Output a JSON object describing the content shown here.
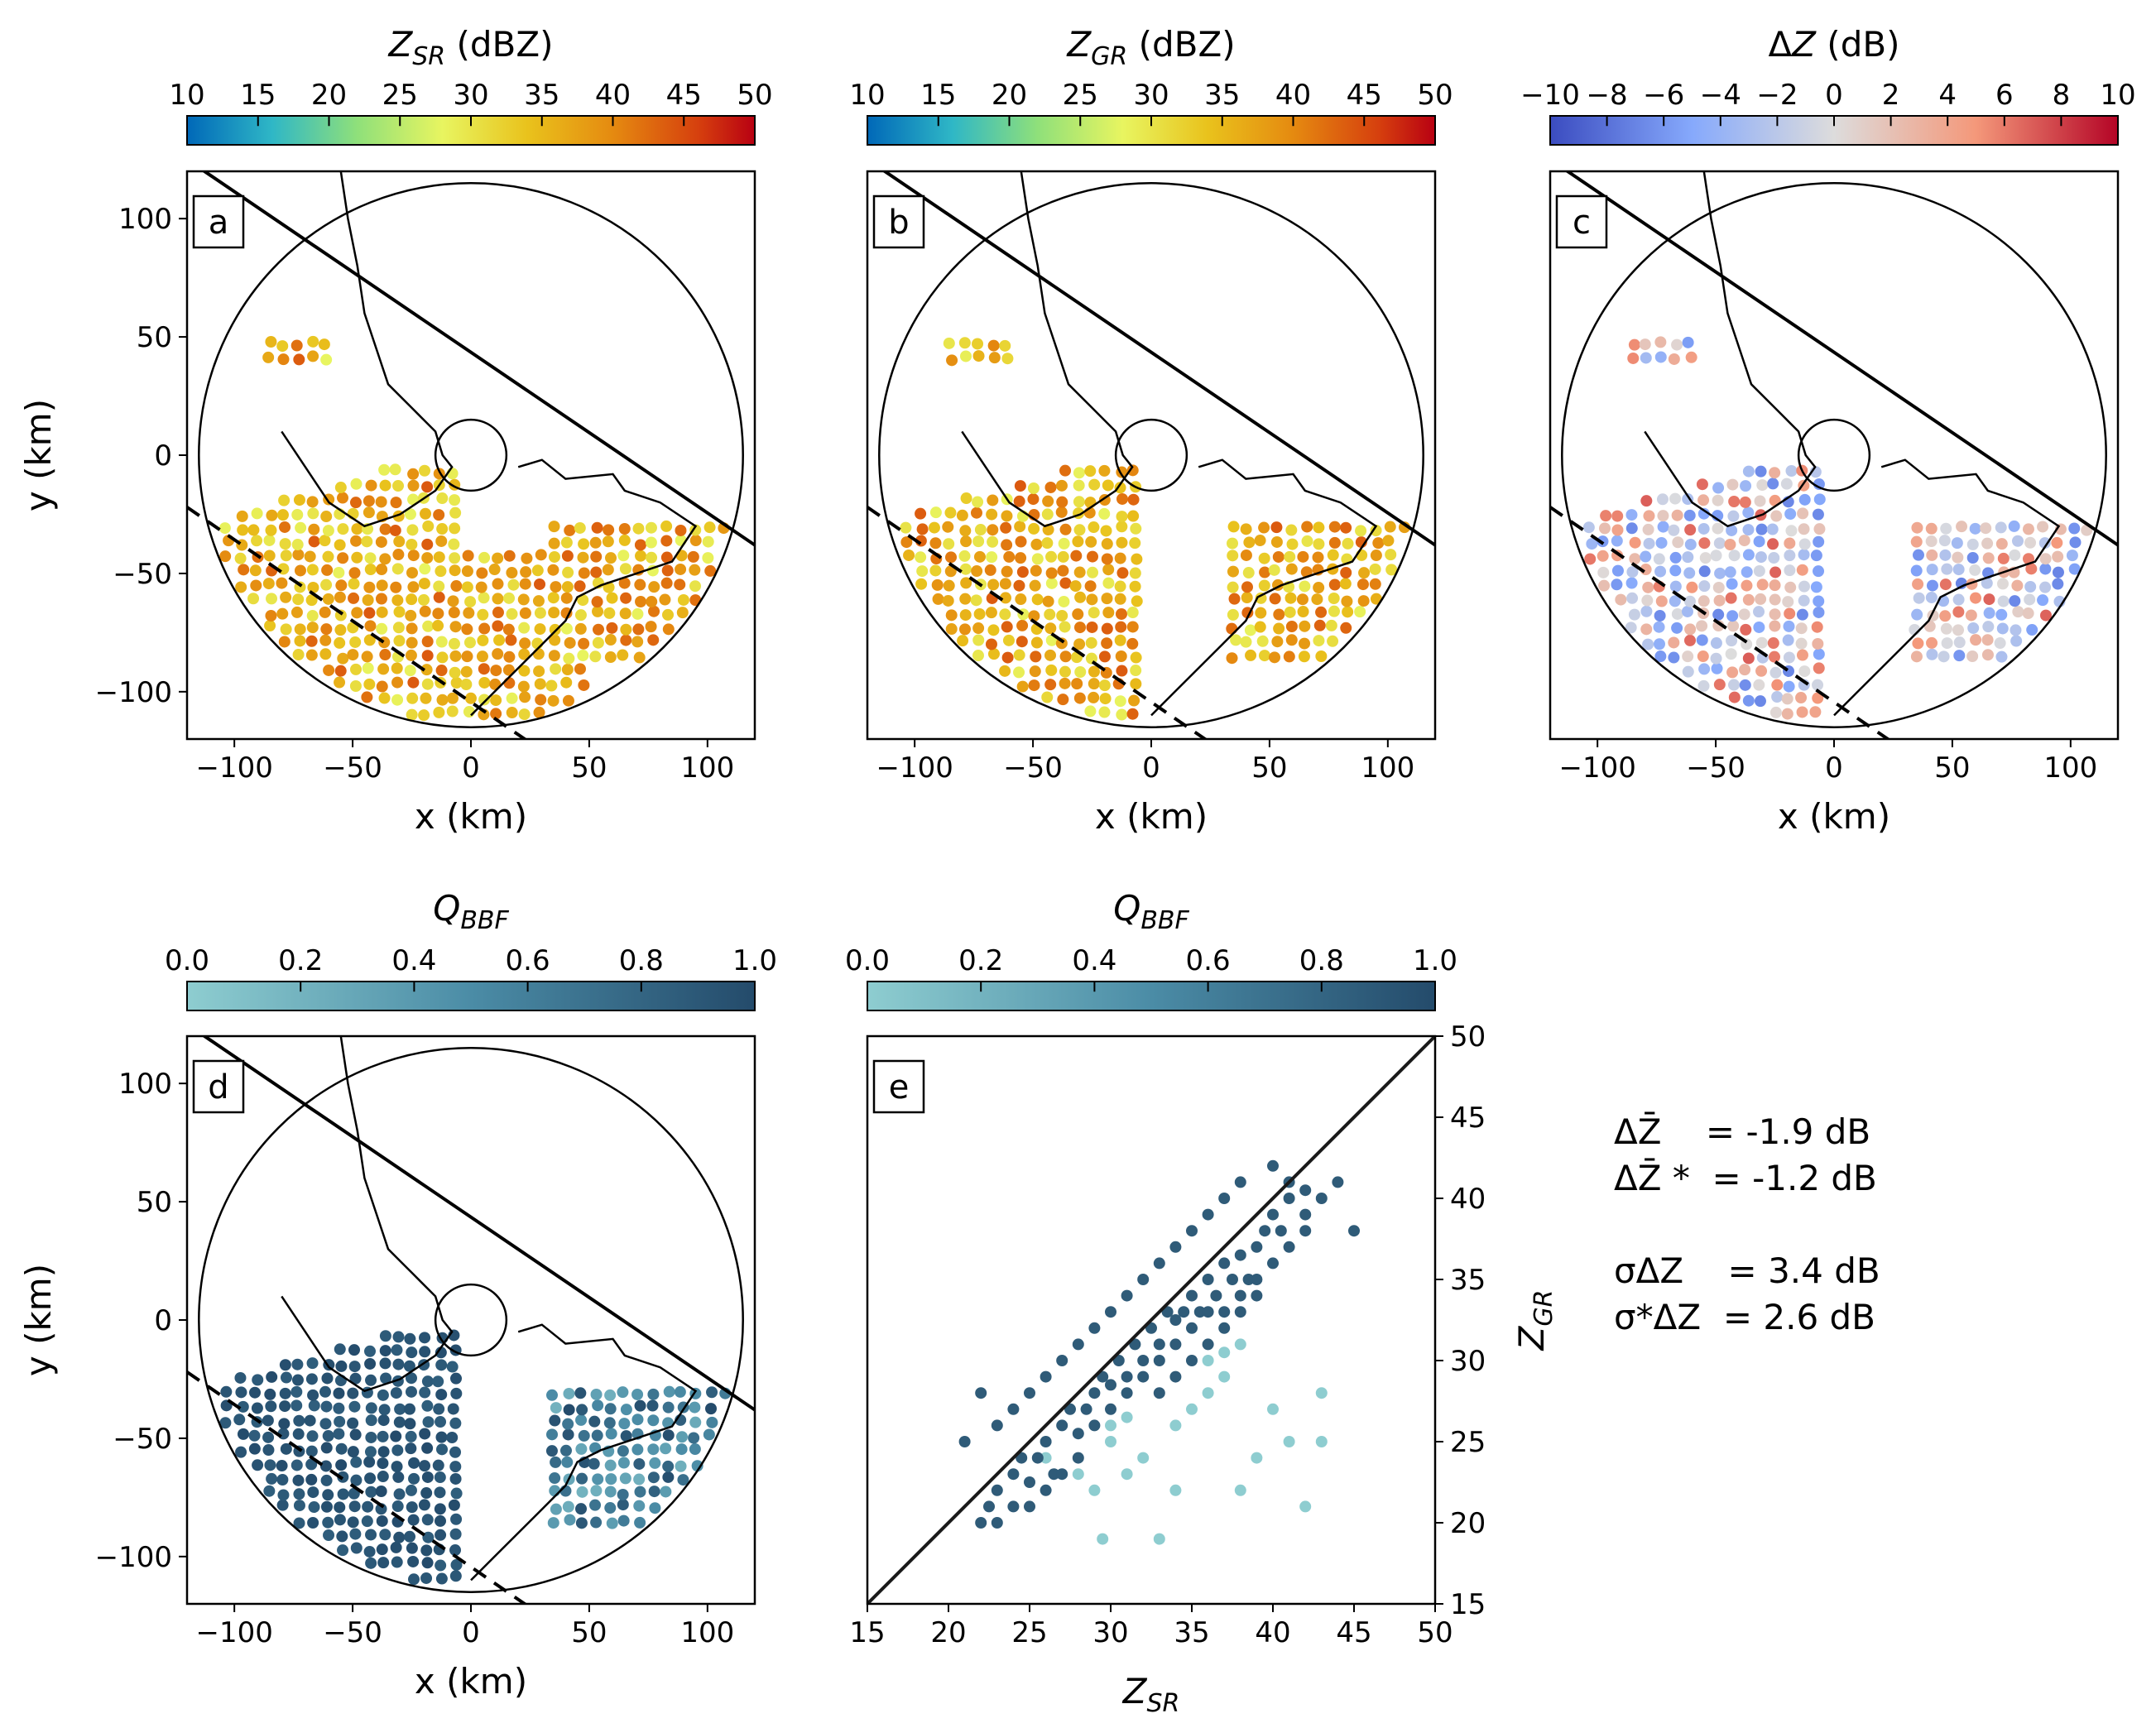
{
  "figure": {
    "panel_labels": [
      "a",
      "b",
      "c",
      "d",
      "e"
    ],
    "stats_lines": [
      "ΔZ̄    = -1.9 dB",
      "ΔZ̄ *  = -1.2 dB",
      "",
      "σΔZ    = 3.4 dB",
      "σ*ΔZ  = 2.6 dB"
    ]
  },
  "colorbars": {
    "zsr": {
      "title": "Z_SR (dBZ)",
      "ticks": [
        "10",
        "15",
        "20",
        "25",
        "30",
        "35",
        "40",
        "45",
        "50"
      ],
      "cmap": "jet-like"
    },
    "zgr": {
      "title": "Z_GR (dBZ)",
      "ticks": [
        "10",
        "15",
        "20",
        "25",
        "30",
        "35",
        "40",
        "45",
        "50"
      ],
      "cmap": "jet-like"
    },
    "dz": {
      "title": "ΔZ (dB)",
      "ticks": [
        "−10",
        "−8",
        "−6",
        "−4",
        "−2",
        "0",
        "2",
        "4",
        "6",
        "8",
        "10"
      ],
      "cmap": "coolwarm"
    },
    "qbbf_d": {
      "title": "Q_BBF",
      "ticks": [
        "0.0",
        "0.2",
        "0.4",
        "0.6",
        "0.8",
        "1.0"
      ],
      "cmap": "blues-teal"
    },
    "qbbf_e": {
      "title": "Q_BBF",
      "ticks": [
        "0.0",
        "0.2",
        "0.4",
        "0.6",
        "0.8",
        "1.0"
      ],
      "cmap": "blues-teal"
    }
  },
  "chart_data": [
    {
      "type": "scatter",
      "panel": "a",
      "title": "",
      "xlabel": "x (km)",
      "ylabel": "y (km)",
      "xlim": [
        -120,
        120
      ],
      "ylim": [
        -120,
        120
      ],
      "xticks": [
        "−100",
        "−50",
        "0",
        "50",
        "100"
      ],
      "yticks": [
        "100",
        "50",
        "0",
        "−50",
        "−100"
      ],
      "range_rings_km": [
        115,
        15
      ],
      "color_variable": "Z_SR (dBZ)"
    },
    {
      "type": "scatter",
      "panel": "b",
      "xlabel": "x (km)",
      "xlim": [
        -120,
        120
      ],
      "ylim": [
        -120,
        120
      ],
      "xticks": [
        "−100",
        "−50",
        "0",
        "50",
        "100"
      ],
      "color_variable": "Z_GR (dBZ)"
    },
    {
      "type": "scatter",
      "panel": "c",
      "xlabel": "x (km)",
      "xlim": [
        -120,
        120
      ],
      "ylim": [
        -120,
        120
      ],
      "xticks": [
        "−100",
        "−50",
        "0",
        "50",
        "100"
      ],
      "color_variable": "ΔZ (dB)"
    },
    {
      "type": "scatter",
      "panel": "d",
      "xlabel": "x (km)",
      "ylabel": "y (km)",
      "xlim": [
        -120,
        120
      ],
      "ylim": [
        -120,
        120
      ],
      "xticks": [
        "−100",
        "−50",
        "0",
        "50",
        "100"
      ],
      "yticks": [
        "100",
        "50",
        "0",
        "−50",
        "−100"
      ],
      "color_variable": "Q_BBF"
    },
    {
      "type": "scatter",
      "panel": "e",
      "xlabel": "Z_SR",
      "ylabel": "Z_GR",
      "xlim": [
        15,
        50
      ],
      "ylim": [
        15,
        50
      ],
      "xticks": [
        "15",
        "20",
        "25",
        "30",
        "35",
        "40",
        "45",
        "50"
      ],
      "yticks": [
        "50",
        "45",
        "40",
        "35",
        "30",
        "25",
        "20",
        "15"
      ],
      "one_to_one_line": true,
      "series": [
        {
          "name": "",
          "points": [
            [
              22,
              20
            ],
            [
              22.5,
              21
            ],
            [
              23,
              22
            ],
            [
              24,
              23
            ],
            [
              24.5,
              24
            ],
            [
              25,
              22.5
            ],
            [
              25.5,
              24
            ],
            [
              26,
              25
            ],
            [
              26.5,
              23
            ],
            [
              27,
              26
            ],
            [
              27.5,
              27
            ],
            [
              28,
              25.5
            ],
            [
              28.5,
              27
            ],
            [
              29,
              28
            ],
            [
              29.5,
              29
            ],
            [
              30,
              28.5
            ],
            [
              30.5,
              30
            ],
            [
              31,
              29
            ],
            [
              31.5,
              31
            ],
            [
              32,
              30
            ],
            [
              32.5,
              32
            ],
            [
              33,
              31
            ],
            [
              33.5,
              33
            ],
            [
              34,
              32.5
            ],
            [
              34.5,
              33
            ],
            [
              35,
              34
            ],
            [
              35.5,
              33
            ],
            [
              36,
              35
            ],
            [
              36.5,
              34
            ],
            [
              37,
              36
            ],
            [
              37.5,
              35
            ],
            [
              38,
              36.5
            ],
            [
              38.5,
              35
            ],
            [
              39,
              37
            ],
            [
              39.5,
              38
            ],
            [
              40,
              39
            ],
            [
              40.5,
              38
            ],
            [
              41,
              40
            ],
            [
              42,
              39
            ],
            [
              43,
              40
            ],
            [
              44,
              41
            ],
            [
              45,
              38
            ],
            [
              21,
              25
            ],
            [
              22,
              28
            ],
            [
              23,
              26
            ],
            [
              24,
              27
            ],
            [
              25,
              28
            ],
            [
              26,
              29
            ],
            [
              27,
              30
            ],
            [
              28,
              31
            ],
            [
              29,
              32
            ],
            [
              30,
              33
            ],
            [
              31,
              34
            ],
            [
              32,
              35
            ],
            [
              33,
              36
            ],
            [
              34,
              37
            ],
            [
              35,
              38
            ],
            [
              36,
              39
            ],
            [
              37,
              40
            ],
            [
              38,
              41
            ],
            [
              40,
              42
            ],
            [
              41,
              41
            ],
            [
              42,
              40.5
            ],
            [
              36,
              33
            ],
            [
              35,
              32
            ],
            [
              34,
              31
            ],
            [
              33,
              30
            ],
            [
              32,
              29
            ],
            [
              31,
              28
            ],
            [
              30,
              27
            ],
            [
              29,
              26
            ],
            [
              28,
              24
            ],
            [
              27,
              23
            ],
            [
              26,
              22
            ],
            [
              25,
              21
            ],
            [
              24,
              21
            ],
            [
              23,
              20
            ],
            [
              37,
              33
            ],
            [
              38,
              34
            ],
            [
              39,
              35
            ],
            [
              40,
              36
            ],
            [
              41,
              37
            ],
            [
              42,
              38
            ],
            [
              33,
              28
            ],
            [
              34,
              29
            ],
            [
              35,
              30
            ],
            [
              36,
              31
            ],
            [
              37,
              32
            ],
            [
              38,
              33
            ],
            [
              39,
              34
            ]
          ]
        },
        {
          "name": "",
          "points": [
            [
              26,
              24
            ],
            [
              28,
              23
            ],
            [
              29,
              22
            ],
            [
              29.5,
              19
            ],
            [
              30,
              25
            ],
            [
              31,
              23
            ],
            [
              32,
              24
            ],
            [
              33,
              19
            ],
            [
              34,
              26
            ],
            [
              35,
              27
            ],
            [
              36,
              28
            ],
            [
              37,
              29
            ],
            [
              38,
              22
            ],
            [
              39,
              24
            ],
            [
              40,
              27
            ],
            [
              41,
              25
            ],
            [
              42,
              21
            ],
            [
              43,
              28
            ],
            [
              43,
              25
            ],
            [
              34,
              22
            ],
            [
              36,
              30
            ],
            [
              37,
              30.5
            ],
            [
              38,
              31
            ],
            [
              30,
              26
            ],
            [
              31,
              26.5
            ]
          ]
        }
      ]
    }
  ]
}
